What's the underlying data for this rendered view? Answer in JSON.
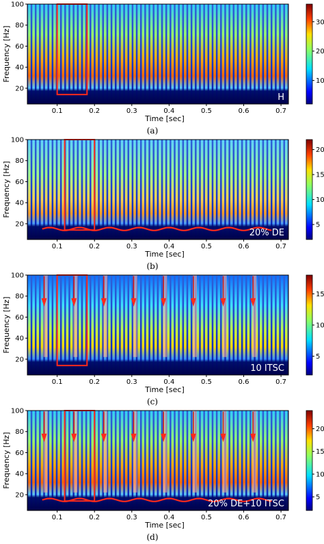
{
  "figure": {
    "panels": [
      {
        "caption": "(a)",
        "annotation": "H",
        "ylabel": "Frequency [Hz]",
        "xlabel": "Time [sec]",
        "colorbar_ticks": [
          "10",
          "20",
          "30"
        ],
        "colorbar_range": [
          2,
          36
        ],
        "strip_count": 62,
        "indicator_arrow_times": [],
        "red_box": {
          "t0": 0.1,
          "t1": 0.18,
          "f0": 14,
          "f1": 100
        },
        "has_red_curve": false
      },
      {
        "caption": "(b)",
        "annotation": "20% DE",
        "ylabel": "Frequency [Hz]",
        "xlabel": "Time [sec]",
        "colorbar_ticks": [
          "5",
          "10",
          "15",
          "20"
        ],
        "colorbar_range": [
          2,
          22
        ],
        "strip_count": 62,
        "indicator_arrow_times": [],
        "red_box": {
          "t0": 0.12,
          "t1": 0.2,
          "f0": 14,
          "f1": 100
        },
        "has_red_curve": true
      },
      {
        "caption": "(c)",
        "annotation": "10 ITSC",
        "ylabel": "Frequency [Hz]",
        "xlabel": "Time [sec]",
        "colorbar_ticks": [
          "5",
          "10",
          "15"
        ],
        "colorbar_range": [
          2,
          18
        ],
        "strip_count": 62,
        "indicator_arrow_times": [
          0.065,
          0.145,
          0.225,
          0.305,
          0.385,
          0.465,
          0.545,
          0.625
        ],
        "red_box": {
          "t0": 0.1,
          "t1": 0.18,
          "f0": 14,
          "f1": 100
        },
        "has_red_curve": false
      },
      {
        "caption": "(d)",
        "annotation": "20% DE+10 ITSC",
        "ylabel": "Frequency [Hz]",
        "xlabel": "Time [sec]",
        "colorbar_ticks": [
          "5",
          "10",
          "15",
          "20"
        ],
        "colorbar_range": [
          2,
          24
        ],
        "strip_count": 62,
        "indicator_arrow_times": [
          0.065,
          0.145,
          0.225,
          0.305,
          0.385,
          0.465,
          0.545,
          0.625
        ],
        "red_box": {
          "t0": 0.12,
          "t1": 0.2,
          "f0": 14,
          "f1": 100
        },
        "has_red_curve": true
      }
    ]
  },
  "chart_data": [
    {
      "type": "heatmap",
      "title": "",
      "xlabel": "Time [sec]",
      "ylabel": "Frequency [Hz]",
      "xlim": [
        0.02,
        0.72
      ],
      "ylim": [
        5,
        100
      ],
      "xticks": [
        "0.1",
        "0.2",
        "0.3",
        "0.4",
        "0.5",
        "0.6",
        "0.7"
      ],
      "yticks": [
        "20",
        "40",
        "60",
        "80",
        "100"
      ],
      "colorbar_ticks": [
        10,
        20,
        30
      ],
      "annotation": "H"
    },
    {
      "type": "heatmap",
      "title": "",
      "xlabel": "Time [sec]",
      "ylabel": "Frequency [Hz]",
      "xlim": [
        0.02,
        0.72
      ],
      "ylim": [
        5,
        100
      ],
      "xticks": [
        "0.1",
        "0.2",
        "0.3",
        "0.4",
        "0.5",
        "0.6",
        "0.7"
      ],
      "yticks": [
        "20",
        "40",
        "60",
        "80",
        "100"
      ],
      "colorbar_ticks": [
        5,
        10,
        15,
        20
      ],
      "annotation": "20% DE"
    },
    {
      "type": "heatmap",
      "title": "",
      "xlabel": "Time [sec]",
      "ylabel": "Frequency [Hz]",
      "xlim": [
        0.02,
        0.72
      ],
      "ylim": [
        5,
        100
      ],
      "xticks": [
        "0.1",
        "0.2",
        "0.3",
        "0.4",
        "0.5",
        "0.6",
        "0.7"
      ],
      "yticks": [
        "20",
        "40",
        "60",
        "80",
        "100"
      ],
      "colorbar_ticks": [
        5,
        10,
        15
      ],
      "annotation": "10 ITSC"
    },
    {
      "type": "heatmap",
      "title": "",
      "xlabel": "Time [sec]",
      "ylabel": "Frequency [Hz]",
      "xlim": [
        0.02,
        0.72
      ],
      "ylim": [
        5,
        100
      ],
      "xticks": [
        "0.1",
        "0.2",
        "0.3",
        "0.4",
        "0.5",
        "0.6",
        "0.7"
      ],
      "yticks": [
        "20",
        "40",
        "60",
        "80",
        "100"
      ],
      "colorbar_ticks": [
        5,
        10,
        15,
        20
      ],
      "annotation": "20% DE+10 ITSC"
    }
  ]
}
